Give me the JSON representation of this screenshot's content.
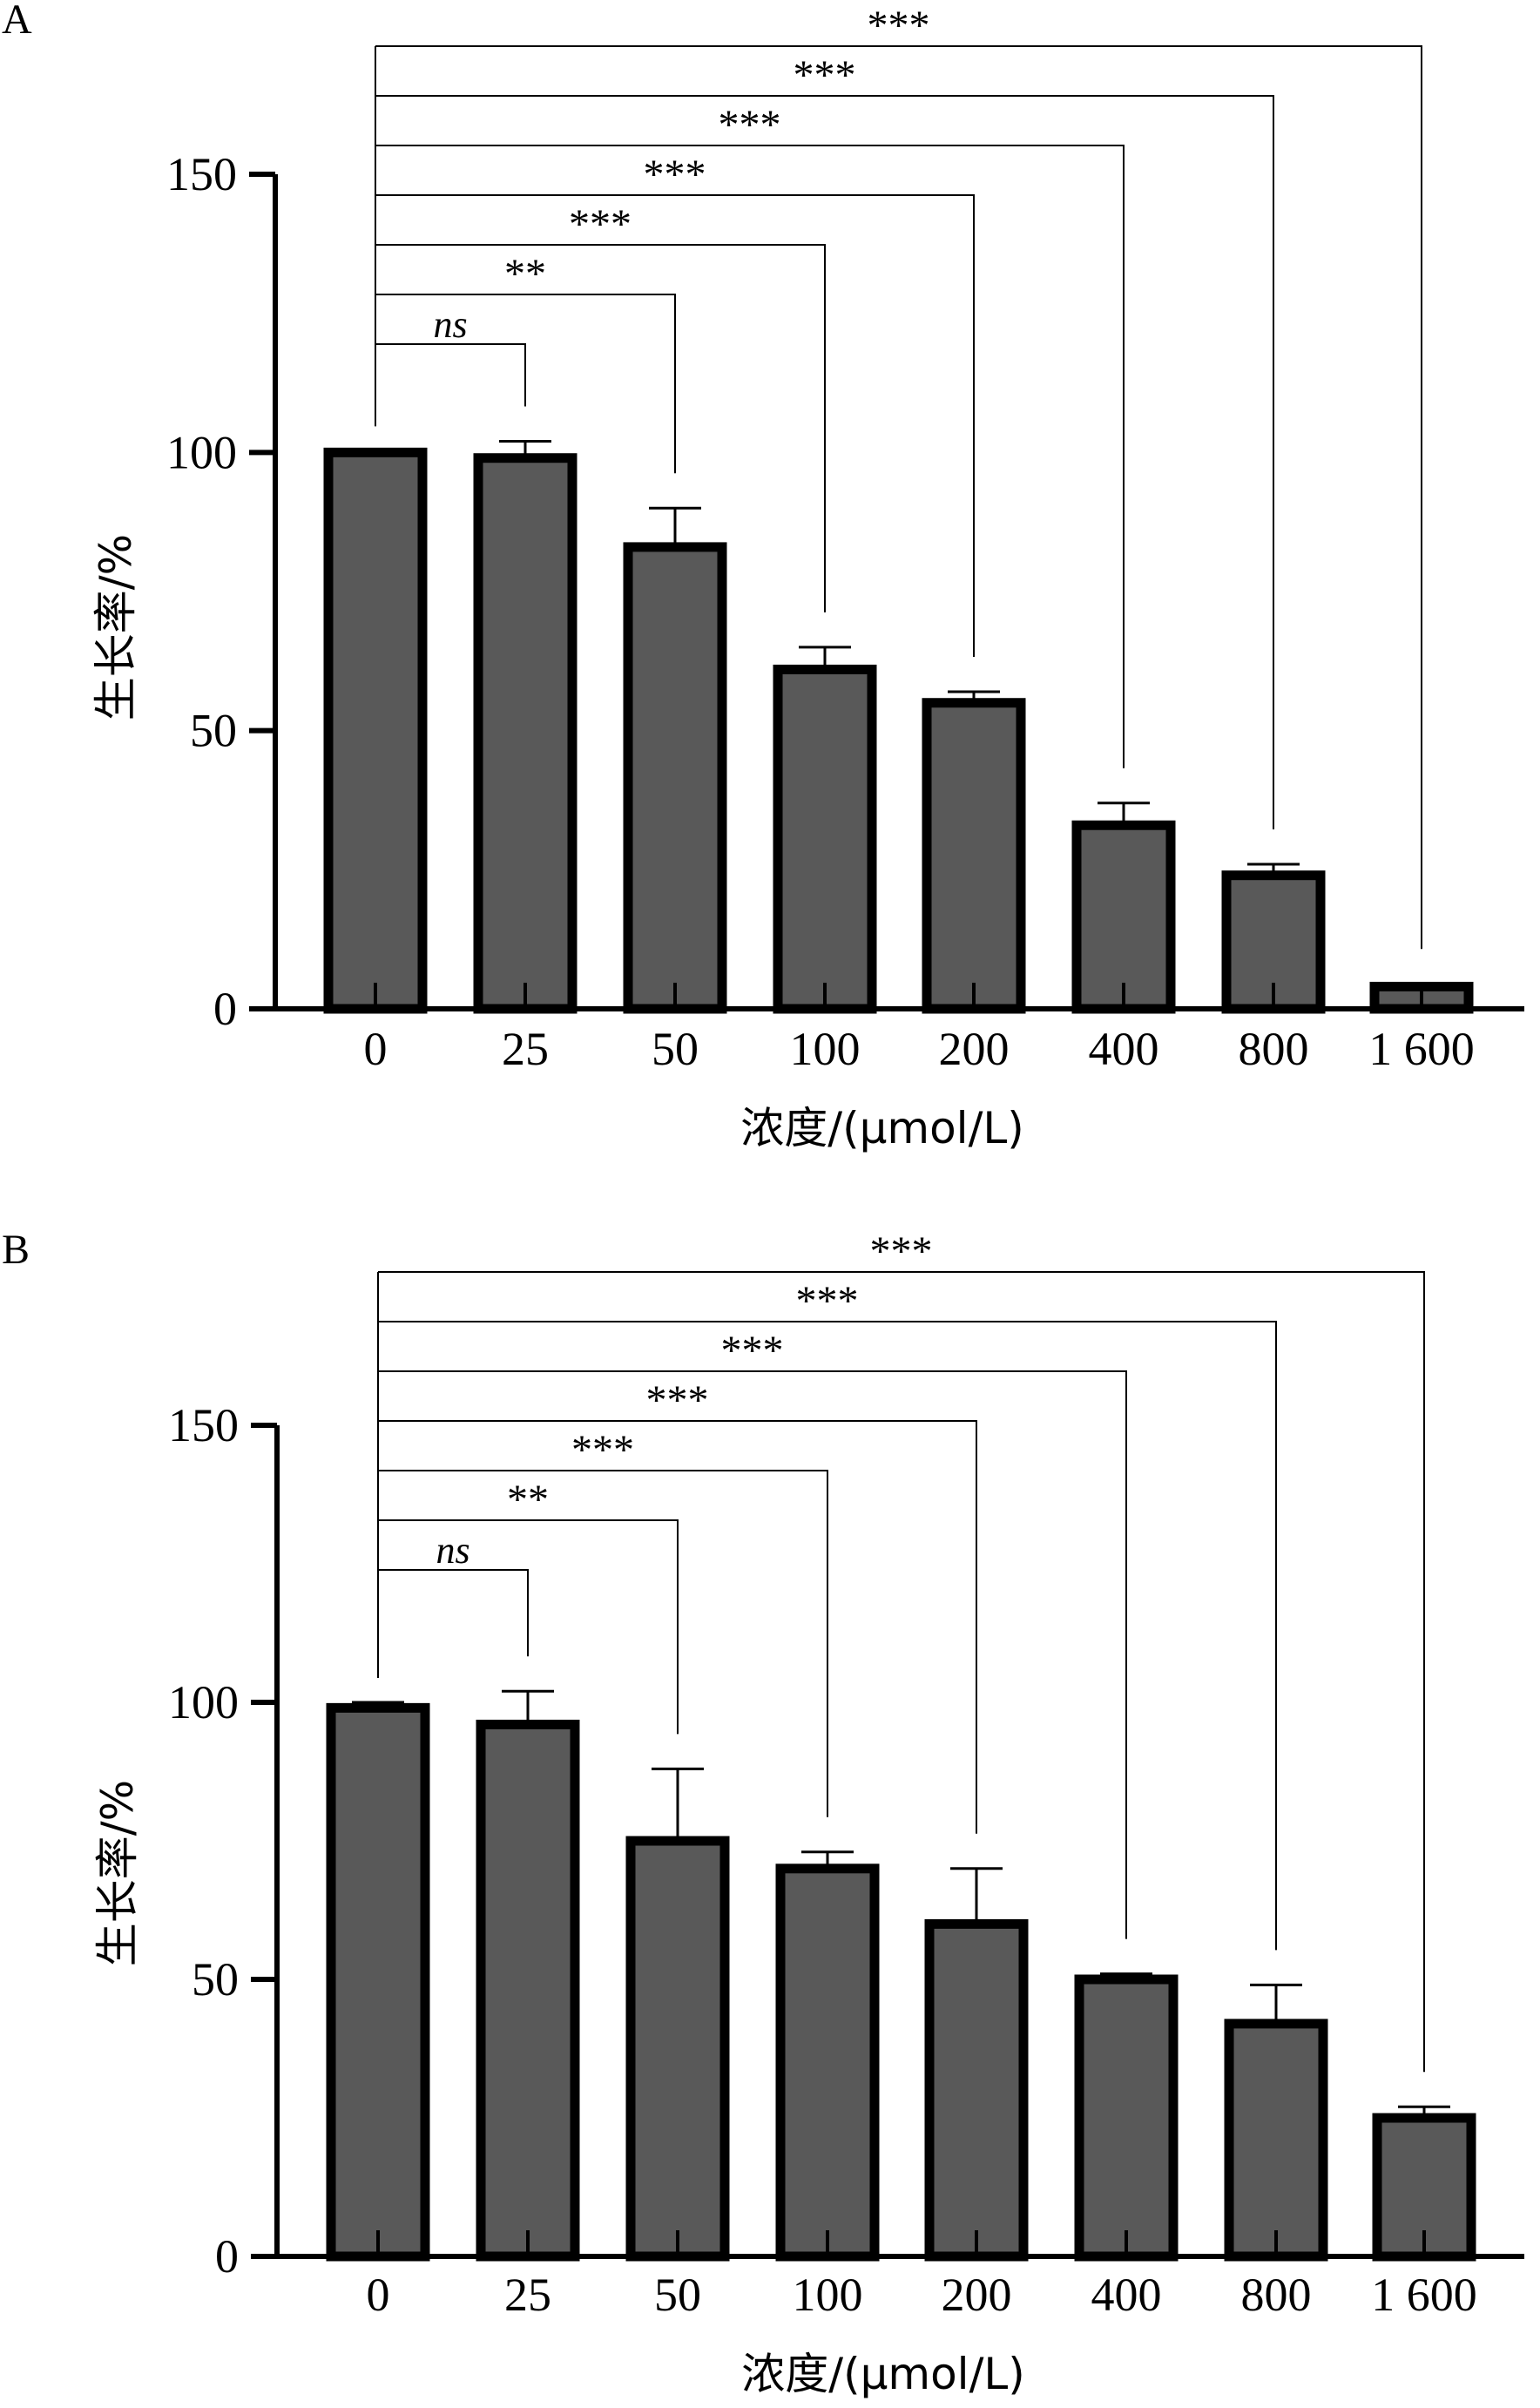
{
  "chart_data": [
    {
      "panel": "A",
      "type": "bar",
      "categories": [
        "0",
        "25",
        "50",
        "100",
        "200",
        "400",
        "800",
        "1 600"
      ],
      "values": [
        100,
        99,
        83,
        61,
        55,
        33,
        24,
        4
      ],
      "errors": [
        0.3,
        3,
        7,
        4,
        2,
        4,
        2,
        0.5
      ],
      "ylabel": "生长率/%",
      "xlabel": "浓度/(μmol/L)",
      "ylim": [
        0,
        150
      ],
      "yticks": [
        "0",
        "50",
        "100",
        "150"
      ],
      "significance": [
        "ns",
        "**",
        "***",
        "***",
        "***",
        "***",
        "***"
      ],
      "bar_color": "#595959",
      "grid": false
    },
    {
      "panel": "B",
      "type": "bar",
      "categories": [
        "0",
        "25",
        "50",
        "100",
        "200",
        "400",
        "800",
        "1 600"
      ],
      "values": [
        99,
        96,
        75,
        70,
        60,
        50,
        42,
        25
      ],
      "errors": [
        1,
        6,
        13,
        3,
        10,
        1,
        7,
        2
      ],
      "ylabel": "生长率/%",
      "xlabel": "浓度/(μmol/L)",
      "ylim": [
        0,
        150
      ],
      "yticks": [
        "0",
        "50",
        "100",
        "150"
      ],
      "significance": [
        "ns",
        "**",
        "***",
        "***",
        "***",
        "***",
        "***"
      ],
      "bar_color": "#595959",
      "grid": false
    }
  ]
}
